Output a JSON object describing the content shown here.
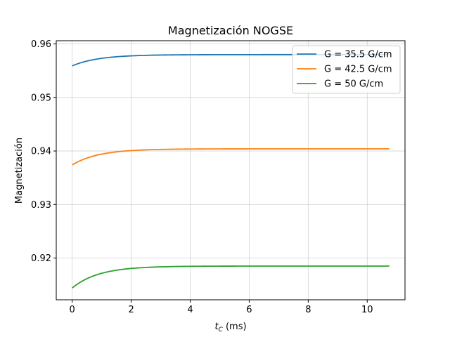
{
  "chart_data": {
    "type": "line",
    "title": "Magnetización NOGSE",
    "xlabel_main": "t",
    "xlabel_sub": "C",
    "xlabel_unit": " (ms)",
    "ylabel": "Magnetización",
    "xlim": [
      -0.54,
      11.28
    ],
    "ylim": [
      0.9122,
      0.9606
    ],
    "xticks": [
      0,
      2,
      4,
      6,
      8,
      10
    ],
    "xtick_labels": [
      "0",
      "2",
      "4",
      "6",
      "8",
      "10"
    ],
    "yticks": [
      0.92,
      0.93,
      0.94,
      0.95,
      0.96
    ],
    "ytick_labels": [
      "0.92",
      "0.93",
      "0.94",
      "0.95",
      "0.96"
    ],
    "grid": true,
    "legend_position": "top-right",
    "x_range": [
      0,
      10.75
    ],
    "series": [
      {
        "name": "G = 35.5 G/cm",
        "color": "#1f77b4",
        "start": 0.9559,
        "plateau": 0.958,
        "tau": 0.9
      },
      {
        "name": "G = 42.5 G/cm",
        "color": "#ff7f0e",
        "start": 0.9374,
        "plateau": 0.9404,
        "tau": 0.9
      },
      {
        "name": "G = 50 G/cm",
        "color": "#2ca02c",
        "start": 0.9144,
        "plateau": 0.9185,
        "tau": 0.9
      }
    ]
  }
}
